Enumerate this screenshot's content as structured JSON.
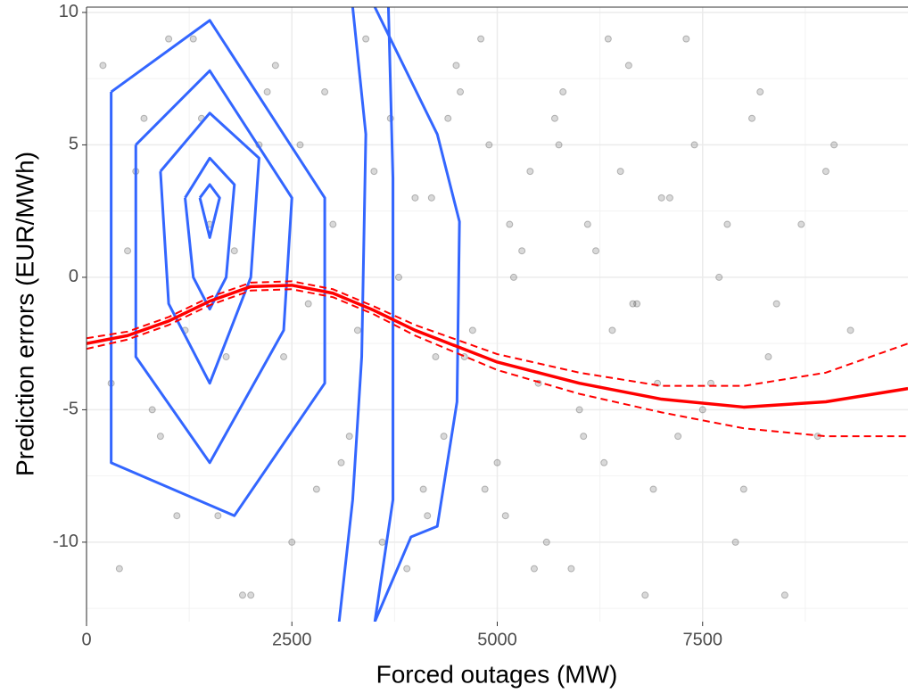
{
  "chart_data": {
    "type": "scatter",
    "x_label": "Forced outages (MW)",
    "y_label": "Prediction errors (EUR/MWh)",
    "xlim": [
      0,
      10000
    ],
    "ylim": [
      -13,
      10.2
    ],
    "xticks": [
      0,
      2500,
      5000,
      7500
    ],
    "yticks": [
      -10,
      -5,
      0,
      5,
      10
    ],
    "xminor": [
      1250,
      3750,
      6250,
      8750
    ],
    "yminor": [
      -12.5,
      -7.5,
      -2.5,
      2.5,
      7.5
    ],
    "grid": true,
    "points": {
      "color": "#000000",
      "x": [
        4200,
        4350,
        4500,
        4700,
        4900,
        5100,
        5300,
        5500,
        5700,
        5900,
        6100,
        6300,
        6500,
        6700,
        6900,
        7100,
        7300,
        7500,
        7700,
        7900,
        8100,
        8300,
        8500,
        8700,
        8900,
        9100,
        9300,
        4150,
        4400,
        4600,
        4800,
        5000,
        5200,
        5400,
        5600,
        5800,
        6000,
        6200,
        6400,
        6600,
        6800,
        7000,
        7200,
        7400,
        7600,
        7800,
        8000,
        8200,
        8400,
        9000,
        4250,
        4550,
        4850,
        5150,
        5450,
        5750,
        6050,
        6350,
        6650,
        6950,
        200,
        400,
        600,
        800,
        1000,
        1200,
        1400,
        1600,
        1800,
        2000,
        2200,
        2400,
        2600,
        2800,
        3000,
        3200,
        3400,
        3600,
        3800,
        4000,
        300,
        700,
        1100,
        1500,
        1900,
        2300,
        2700,
        3100,
        3500,
        3900,
        500,
        900,
        1300,
        1700,
        2100,
        2500,
        2900,
        3300,
        3700,
        4100
      ],
      "y": [
        3,
        -6,
        8,
        -2,
        5,
        -9,
        1,
        -4,
        6,
        -11,
        2,
        -7,
        4,
        -1,
        -8,
        3,
        9,
        -5,
        0,
        -10,
        6,
        -3,
        -12,
        2,
        -6,
        5,
        -2,
        -9,
        6,
        -3,
        9,
        -7,
        0,
        4,
        -10,
        7,
        -5,
        1,
        -2,
        8,
        -12,
        3,
        -6,
        5,
        -4,
        2,
        -8,
        7,
        -1,
        4,
        -3,
        7,
        -8,
        2,
        -11,
        5,
        -6,
        9,
        -1,
        -4,
        8,
        -11,
        4,
        -5,
        9,
        -2,
        6,
        -9,
        1,
        -12,
        7,
        -3,
        5,
        -8,
        2,
        -6,
        9,
        -10,
        0,
        3,
        -4,
        6,
        -9,
        2,
        -12,
        8,
        -1,
        -7,
        4,
        -11,
        1,
        -6,
        9,
        -3,
        5,
        -10,
        7,
        -2,
        6,
        -8
      ]
    },
    "contours": {
      "color": "#3366ff",
      "lines": [
        {
          "x": [
            3510,
            4270,
            4540,
            4510,
            4270,
            3950,
            3510
          ],
          "y": [
            10.2,
            5.4,
            2.1,
            -4.7,
            -9.4,
            -9.8,
            -13
          ]
        },
        {
          "x": [
            3675,
            3730,
            3730,
            3730,
            3510
          ],
          "y": [
            10.2,
            3.75,
            -3,
            -8.4,
            -13
          ]
        },
        {
          "x": [
            3240,
            3400,
            3350,
            3240,
            3075
          ],
          "y": [
            10.2,
            5.4,
            -3,
            -8.4,
            -13
          ]
        },
        {
          "x": [
            300,
            1500,
            2900,
            2900,
            1800,
            300,
            300
          ],
          "y": [
            7,
            9.7,
            3,
            -4,
            -9,
            -7,
            7
          ]
        },
        {
          "x": [
            600,
            1500,
            2500,
            2400,
            1500,
            600,
            600
          ],
          "y": [
            5,
            7.8,
            3,
            -2,
            -7,
            -3,
            5
          ]
        },
        {
          "x": [
            900,
            1500,
            2100,
            2000,
            1500,
            1000,
            900
          ],
          "y": [
            4,
            6.2,
            4.5,
            0,
            -4,
            -1,
            4
          ]
        },
        {
          "x": [
            1200,
            1500,
            1800,
            1700,
            1500,
            1300,
            1200
          ],
          "y": [
            3,
            4.5,
            3.5,
            0,
            -1.2,
            0,
            3
          ]
        },
        {
          "x": [
            1380,
            1500,
            1620,
            1500,
            1380
          ],
          "y": [
            3,
            3.5,
            3,
            1.5,
            3
          ]
        }
      ]
    },
    "fit": {
      "color": "#ff0000",
      "x": [
        0,
        500,
        1000,
        1500,
        2000,
        2500,
        3000,
        3500,
        4000,
        5000,
        6000,
        7000,
        8000,
        9000,
        10000
      ],
      "y": [
        -2.5,
        -2.2,
        -1.65,
        -0.9,
        -0.35,
        -0.3,
        -0.6,
        -1.25,
        -2.0,
        -3.2,
        -4.0,
        -4.6,
        -4.9,
        -4.7,
        -4.2
      ],
      "lower": [
        -2.7,
        -2.35,
        -1.8,
        -1.05,
        -0.5,
        -0.45,
        -0.75,
        -1.4,
        -2.2,
        -3.5,
        -4.4,
        -5.1,
        -5.7,
        -6.0,
        -6.0
      ],
      "upper": [
        -2.3,
        -2.05,
        -1.5,
        -0.75,
        -0.2,
        -0.15,
        -0.45,
        -1.1,
        -1.8,
        -2.9,
        -3.6,
        -4.1,
        -4.1,
        -3.6,
        -2.5
      ]
    }
  }
}
